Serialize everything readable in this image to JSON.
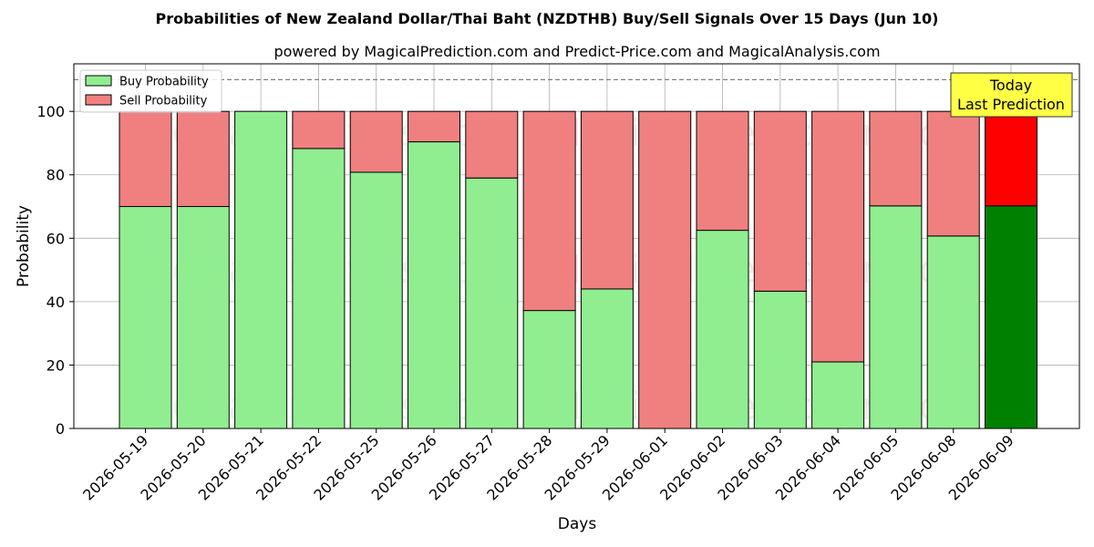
{
  "chart_data": {
    "type": "bar",
    "stacked": true,
    "title": "Probabilities of New Zealand Dollar/Thai Baht (NZDTHB) Buy/Sell Signals Over 15 Days (Jun 10)",
    "subtitle": "powered by MagicalPrediction.com and Predict-Price.com and MagicalAnalysis.com",
    "xlabel": "Days",
    "ylabel": "Probability",
    "ylim": [
      0,
      115
    ],
    "yticks": [
      0,
      20,
      40,
      60,
      80,
      100
    ],
    "grid": true,
    "legend_position": "top-left",
    "reference_line": 110,
    "categories": [
      "2026-05-19",
      "2026-05-20",
      "2026-05-21",
      "2026-05-22",
      "2026-05-25",
      "2026-05-26",
      "2026-05-27",
      "2026-05-28",
      "2026-05-29",
      "2026-06-01",
      "2026-06-02",
      "2026-06-03",
      "2026-06-04",
      "2026-06-05",
      "2026-06-08",
      "2026-06-09"
    ],
    "series": [
      {
        "name": "Buy Probability",
        "color": "#90ee90",
        "highlight_color": "#008000",
        "values": [
          70,
          70,
          100,
          88.3,
          80.8,
          90.4,
          79,
          37.2,
          44,
          0,
          62.5,
          43.3,
          21,
          70.2,
          60.7,
          70.2
        ]
      },
      {
        "name": "Sell Probability",
        "color": "#f08080",
        "highlight_color": "#ff0000",
        "values": [
          30,
          30,
          0,
          11.7,
          19.2,
          9.6,
          21,
          62.8,
          56,
          100,
          37.5,
          56.7,
          79,
          29.8,
          39.3,
          29.8
        ]
      }
    ],
    "annotation": {
      "lines": [
        "Today",
        "Last Prediction"
      ],
      "target_category": "2026-06-09",
      "background": "#ffff44"
    },
    "watermarks": [
      "MagicalAnalysis.com",
      "MagicalPrediction.com"
    ]
  }
}
